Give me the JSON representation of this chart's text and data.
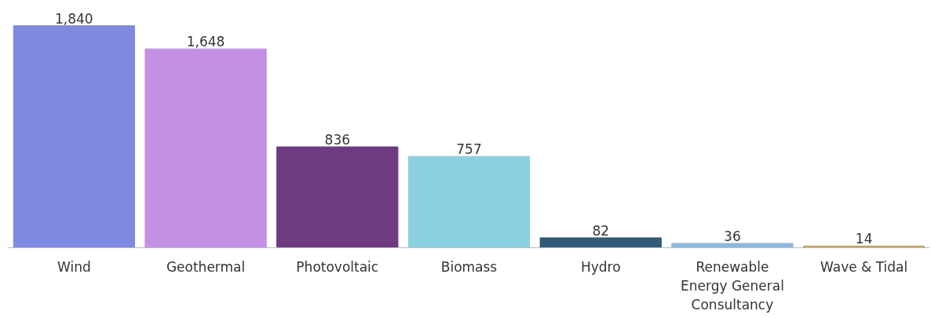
{
  "chart_data": {
    "type": "bar",
    "categories": [
      "Wind",
      "Geothermal",
      "Photovoltaic",
      "Biomass",
      "Hydro",
      "Renewable Energy General Consultancy",
      "Wave & Tidal"
    ],
    "values": [
      1840,
      1648,
      836,
      757,
      82,
      36,
      14
    ],
    "value_labels": [
      "1,840",
      "1,648",
      "836",
      "757",
      "82",
      "36",
      "14"
    ],
    "colors": [
      "#7f89e0",
      "#c490e4",
      "#6e3a80",
      "#8ccfe0",
      "#2f5a78",
      "#8fb8e0",
      "#c8a050"
    ],
    "grid": false
  }
}
